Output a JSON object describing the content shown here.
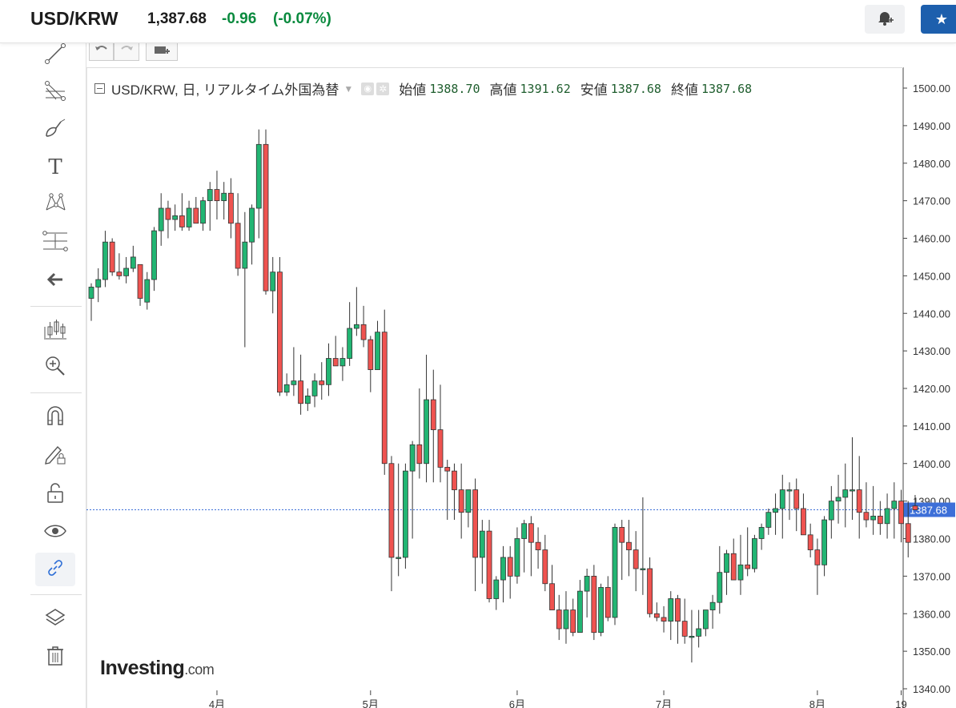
{
  "header": {
    "symbol": "USD/KRW",
    "price": "1,387.68",
    "change": "-0.96",
    "change_pct": "(-0.07%)",
    "change_color": "#0a8a3e",
    "alert_icon": "bell-plus-icon",
    "watchlist_icon": "star-icon"
  },
  "sidebar": {
    "tools": [
      {
        "name": "trend-line-icon"
      },
      {
        "name": "fib-tool-icon"
      },
      {
        "name": "brush-icon"
      },
      {
        "name": "text-icon",
        "glyph": "T"
      },
      {
        "name": "pattern-icon"
      },
      {
        "name": "measure-icon"
      },
      {
        "name": "collapse-arrow-icon"
      },
      {
        "name": "indicators-icon"
      },
      {
        "name": "zoom-icon"
      },
      {
        "name": "magnet-icon"
      },
      {
        "name": "lock-drawing-icon"
      },
      {
        "name": "unlock-icon"
      },
      {
        "name": "eye-icon"
      },
      {
        "name": "link-icon"
      },
      {
        "name": "layers-icon"
      },
      {
        "name": "trash-icon"
      }
    ]
  },
  "toolbar": {
    "undo_icon": "undo-icon",
    "redo_icon": "redo-icon",
    "screenshot_icon": "camera-icon"
  },
  "legend": {
    "title": "USD/KRW, 日, リアルタイム外国為替",
    "open_label": "始値",
    "open": "1388.70",
    "high_label": "高値",
    "high": "1391.62",
    "low_label": "安値",
    "low": "1387.68",
    "close_label": "終値",
    "close": "1387.68"
  },
  "logo": {
    "main": "Investing",
    "suffix": ".com"
  },
  "colors": {
    "up": "#22b573",
    "down": "#ef5350",
    "candle_border": "#333333",
    "current_price": "#3d6fd8"
  },
  "chart_data": {
    "type": "candlestick",
    "ylim": [
      1340,
      1500
    ],
    "yticks": [
      "1340.00",
      "1350.00",
      "1360.00",
      "1370.00",
      "1380.00",
      "1390.00",
      "1400.00",
      "1410.00",
      "1420.00",
      "1430.00",
      "1440.00",
      "1450.00",
      "1460.00",
      "1470.00",
      "1480.00",
      "1490.00",
      "1500.00"
    ],
    "xlabels": [
      "4月",
      "5月",
      "6月",
      "7月",
      "8月",
      "19"
    ],
    "xlabel_bar_index": [
      18,
      40,
      61,
      82,
      104,
      116
    ],
    "current_price": "1387.68",
    "ohlc": [
      [
        1444,
        1448,
        1438,
        1447
      ],
      [
        1447,
        1452,
        1443,
        1449
      ],
      [
        1449,
        1462,
        1447,
        1459
      ],
      [
        1459,
        1460,
        1450,
        1451
      ],
      [
        1451,
        1456,
        1449,
        1450
      ],
      [
        1450,
        1455,
        1448,
        1452
      ],
      [
        1452,
        1458,
        1451,
        1455
      ],
      [
        1453,
        1453,
        1442,
        1444
      ],
      [
        1443,
        1451,
        1441,
        1449
      ],
      [
        1449,
        1463,
        1446,
        1462
      ],
      [
        1462,
        1472,
        1458,
        1468
      ],
      [
        1468,
        1470,
        1460,
        1465
      ],
      [
        1465,
        1469,
        1462,
        1466
      ],
      [
        1466,
        1472,
        1462,
        1463
      ],
      [
        1463,
        1470,
        1462,
        1468
      ],
      [
        1468,
        1471,
        1464,
        1464
      ],
      [
        1464,
        1471,
        1462,
        1470
      ],
      [
        1470,
        1475,
        1462,
        1473
      ],
      [
        1473,
        1478,
        1465,
        1470
      ],
      [
        1470,
        1475,
        1465,
        1472
      ],
      [
        1472,
        1476,
        1460,
        1464
      ],
      [
        1464,
        1472,
        1450,
        1452
      ],
      [
        1452,
        1467,
        1431,
        1459
      ],
      [
        1459,
        1469,
        1453,
        1468
      ],
      [
        1468,
        1489,
        1460,
        1485
      ],
      [
        1485,
        1489,
        1445,
        1446
      ],
      [
        1446,
        1455,
        1440,
        1451
      ],
      [
        1451,
        1455,
        1418,
        1419
      ],
      [
        1419,
        1424,
        1418,
        1421
      ],
      [
        1421,
        1431,
        1418,
        1422
      ],
      [
        1422,
        1429,
        1413,
        1416
      ],
      [
        1416,
        1420,
        1414,
        1418
      ],
      [
        1418,
        1424,
        1415,
        1422
      ],
      [
        1422,
        1427,
        1417,
        1421
      ],
      [
        1421,
        1432,
        1418,
        1428
      ],
      [
        1428,
        1434,
        1426,
        1426
      ],
      [
        1426,
        1431,
        1422,
        1428
      ],
      [
        1428,
        1443,
        1426,
        1436
      ],
      [
        1436,
        1447,
        1434,
        1437
      ],
      [
        1437,
        1442,
        1431,
        1433
      ],
      [
        1433,
        1434,
        1419,
        1425
      ],
      [
        1425,
        1438,
        1425,
        1435
      ],
      [
        1435,
        1441,
        1397,
        1400
      ],
      [
        1400,
        1402,
        1366,
        1375
      ],
      [
        1375,
        1400,
        1370,
        1375
      ],
      [
        1375,
        1400,
        1372,
        1398
      ],
      [
        1398,
        1406,
        1380,
        1405
      ],
      [
        1405,
        1420,
        1396,
        1400
      ],
      [
        1400,
        1429,
        1395,
        1417
      ],
      [
        1417,
        1425,
        1395,
        1409
      ],
      [
        1409,
        1421,
        1395,
        1399
      ],
      [
        1399,
        1401,
        1385,
        1398
      ],
      [
        1398,
        1400,
        1385,
        1393
      ],
      [
        1393,
        1400,
        1380,
        1387
      ],
      [
        1387,
        1393,
        1383,
        1393
      ],
      [
        1393,
        1396,
        1366,
        1375
      ],
      [
        1375,
        1385,
        1368,
        1382
      ],
      [
        1382,
        1385,
        1363,
        1364
      ],
      [
        1364,
        1370,
        1361,
        1369
      ],
      [
        1369,
        1378,
        1363,
        1375
      ],
      [
        1375,
        1378,
        1364,
        1370
      ],
      [
        1370,
        1383,
        1368,
        1380
      ],
      [
        1380,
        1385,
        1371,
        1384
      ],
      [
        1384,
        1386,
        1370,
        1379
      ],
      [
        1379,
        1383,
        1372,
        1377
      ],
      [
        1377,
        1381,
        1366,
        1368
      ],
      [
        1368,
        1373,
        1361,
        1361
      ],
      [
        1361,
        1365,
        1353,
        1356
      ],
      [
        1356,
        1366,
        1352,
        1361
      ],
      [
        1361,
        1364,
        1354,
        1355
      ],
      [
        1355,
        1369,
        1355,
        1366
      ],
      [
        1366,
        1372,
        1359,
        1370
      ],
      [
        1370,
        1373,
        1353,
        1355
      ],
      [
        1355,
        1368,
        1354,
        1367
      ],
      [
        1367,
        1370,
        1358,
        1359
      ],
      [
        1359,
        1384,
        1357,
        1383
      ],
      [
        1383,
        1385,
        1369,
        1379
      ],
      [
        1379,
        1385,
        1370,
        1377
      ],
      [
        1377,
        1382,
        1366,
        1372
      ],
      [
        1372,
        1391,
        1365,
        1372
      ],
      [
        1372,
        1375,
        1359,
        1360
      ],
      [
        1360,
        1363,
        1358,
        1359
      ],
      [
        1359,
        1362,
        1355,
        1358
      ],
      [
        1358,
        1366,
        1353,
        1364
      ],
      [
        1364,
        1365,
        1352,
        1358
      ],
      [
        1358,
        1364,
        1352,
        1354
      ],
      [
        1354,
        1361,
        1347,
        1354
      ],
      [
        1354,
        1361,
        1351,
        1356
      ],
      [
        1356,
        1360,
        1354,
        1361
      ],
      [
        1361,
        1365,
        1356,
        1363
      ],
      [
        1363,
        1378,
        1360,
        1371
      ],
      [
        1371,
        1377,
        1365,
        1376
      ],
      [
        1376,
        1380,
        1369,
        1369
      ],
      [
        1369,
        1381,
        1365,
        1373
      ],
      [
        1373,
        1383,
        1370,
        1372
      ],
      [
        1372,
        1381,
        1371,
        1380
      ],
      [
        1380,
        1384,
        1377,
        1383
      ],
      [
        1383,
        1388,
        1381,
        1387
      ],
      [
        1387,
        1392,
        1381,
        1388
      ],
      [
        1388,
        1397,
        1380,
        1393
      ],
      [
        1393,
        1395,
        1385,
        1393
      ],
      [
        1393,
        1396,
        1382,
        1388
      ],
      [
        1388,
        1392,
        1382,
        1381
      ],
      [
        1381,
        1384,
        1375,
        1377
      ],
      [
        1377,
        1380,
        1365,
        1373
      ],
      [
        1373,
        1386,
        1370,
        1385
      ],
      [
        1385,
        1394,
        1380,
        1390
      ],
      [
        1390,
        1397,
        1384,
        1391
      ],
      [
        1391,
        1400,
        1383,
        1393
      ],
      [
        1393,
        1407,
        1385,
        1393
      ],
      [
        1393,
        1402,
        1380,
        1387
      ],
      [
        1387,
        1395,
        1383,
        1385
      ],
      [
        1385,
        1394,
        1381,
        1386
      ],
      [
        1386,
        1390,
        1381,
        1384
      ],
      [
        1384,
        1392,
        1380,
        1388
      ],
      [
        1388,
        1395,
        1380,
        1390
      ],
      [
        1390,
        1393,
        1379,
        1384
      ],
      [
        1384,
        1390,
        1375,
        1379
      ],
      [
        1388.7,
        1391.62,
        1387.68,
        1387.68
      ]
    ]
  }
}
